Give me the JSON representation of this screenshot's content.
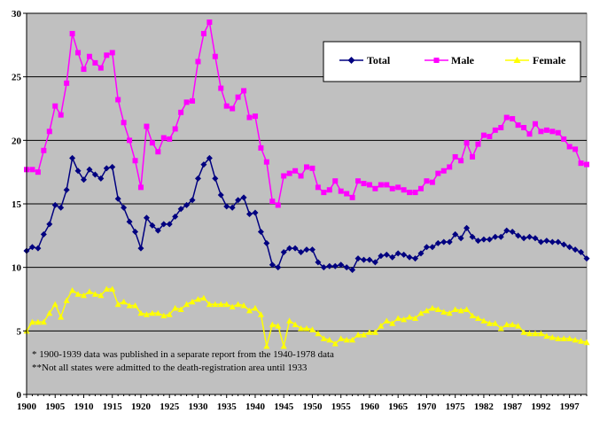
{
  "chart_data": {
    "type": "line",
    "title": "",
    "xlabel": "",
    "ylabel": "",
    "xlim": [
      1900,
      1998
    ],
    "ylim": [
      0,
      30
    ],
    "y_ticks": [
      0,
      5,
      10,
      15,
      20,
      25,
      30
    ],
    "x_tick_labels": [
      "1900",
      "1905",
      "1910",
      "1915",
      "1920",
      "1925",
      "1930",
      "1935",
      "1940",
      "1945",
      "1950",
      "1955",
      "1960",
      "1965",
      "1970",
      "1975",
      "1982",
      "1987",
      "1992",
      "1997"
    ],
    "grid": "horizontal",
    "legend_position": "top-right",
    "plot_background": "#c0c0c0",
    "years": [
      1900,
      1901,
      1902,
      1903,
      1904,
      1905,
      1906,
      1907,
      1908,
      1909,
      1910,
      1911,
      1912,
      1913,
      1914,
      1915,
      1916,
      1917,
      1918,
      1919,
      1920,
      1921,
      1922,
      1923,
      1924,
      1925,
      1926,
      1927,
      1928,
      1929,
      1930,
      1931,
      1932,
      1933,
      1934,
      1935,
      1936,
      1937,
      1938,
      1939,
      1940,
      1941,
      1942,
      1943,
      1944,
      1945,
      1946,
      1947,
      1948,
      1949,
      1950,
      1951,
      1952,
      1953,
      1954,
      1955,
      1956,
      1957,
      1958,
      1959,
      1960,
      1961,
      1962,
      1963,
      1964,
      1965,
      1966,
      1967,
      1968,
      1969,
      1970,
      1971,
      1972,
      1973,
      1974,
      1975,
      1976,
      1977,
      1978,
      1979,
      1980,
      1981,
      1982,
      1983,
      1984,
      1985,
      1986,
      1987,
      1988,
      1989,
      1990,
      1991,
      1992,
      1993,
      1994,
      1995,
      1996,
      1997,
      1998
    ],
    "series": [
      {
        "name": "Total",
        "color": "#000080",
        "marker": "diamond",
        "values": [
          11.3,
          11.6,
          11.5,
          12.6,
          13.4,
          14.9,
          14.7,
          16.1,
          18.6,
          17.6,
          16.9,
          17.7,
          17.3,
          17.0,
          17.8,
          17.9,
          15.4,
          14.7,
          13.6,
          12.8,
          11.5,
          13.9,
          13.3,
          12.9,
          13.4,
          13.4,
          14.0,
          14.6,
          14.9,
          15.3,
          17.0,
          18.1,
          18.6,
          17.0,
          15.7,
          14.8,
          14.7,
          15.3,
          15.5,
          14.2,
          14.3,
          12.8,
          11.9,
          10.2,
          10.0,
          11.2,
          11.5,
          11.5,
          11.2,
          11.4,
          11.4,
          10.4,
          10.0,
          10.1,
          10.1,
          10.2,
          10.0,
          9.8,
          10.7,
          10.6,
          10.6,
          10.4,
          10.9,
          11.0,
          10.8,
          11.1,
          11.0,
          10.8,
          10.7,
          11.1,
          11.6,
          11.6,
          11.9,
          12.0,
          12.0,
          12.6,
          12.3,
          13.1,
          12.4,
          12.1,
          12.2,
          12.2,
          12.4,
          12.4,
          12.9,
          12.8,
          12.5,
          12.3,
          12.4,
          12.3,
          12.0,
          12.1,
          12.0,
          12.0,
          11.8,
          11.6,
          11.4,
          11.2,
          10.7
        ]
      },
      {
        "name": "Male",
        "color": "#ff00ff",
        "marker": "square",
        "values": [
          17.7,
          17.7,
          17.5,
          19.2,
          20.7,
          22.7,
          22.0,
          24.5,
          28.4,
          26.9,
          25.6,
          26.6,
          26.1,
          25.7,
          26.7,
          26.9,
          23.2,
          21.4,
          20.0,
          18.4,
          16.3,
          21.1,
          19.8,
          19.1,
          20.2,
          20.1,
          20.9,
          22.2,
          23.0,
          23.1,
          26.2,
          28.4,
          29.3,
          26.6,
          24.1,
          22.7,
          22.5,
          23.4,
          23.9,
          21.8,
          21.9,
          19.4,
          18.3,
          15.2,
          14.9,
          17.2,
          17.4,
          17.6,
          17.2,
          17.9,
          17.8,
          16.3,
          15.9,
          16.1,
          16.8,
          16.0,
          15.8,
          15.5,
          16.8,
          16.6,
          16.5,
          16.2,
          16.5,
          16.5,
          16.2,
          16.3,
          16.1,
          15.9,
          15.9,
          16.2,
          16.8,
          16.7,
          17.4,
          17.6,
          17.9,
          18.7,
          18.4,
          19.8,
          18.7,
          19.7,
          20.4,
          20.3,
          20.8,
          21.0,
          21.8,
          21.7,
          21.2,
          21.0,
          20.5,
          21.3,
          20.7,
          20.8,
          20.7,
          20.6,
          20.1,
          19.5,
          19.3,
          18.2,
          18.1
        ]
      },
      {
        "name": "Female",
        "color": "#ffff00",
        "marker": "triangle",
        "values": [
          5.0,
          5.7,
          5.7,
          5.7,
          6.4,
          7.1,
          6.1,
          7.4,
          8.2,
          7.9,
          7.8,
          8.1,
          7.9,
          7.8,
          8.3,
          8.3,
          7.1,
          7.3,
          7.0,
          7.0,
          6.4,
          6.3,
          6.4,
          6.4,
          6.2,
          6.3,
          6.8,
          6.7,
          7.1,
          7.3,
          7.5,
          7.6,
          7.1,
          7.1,
          7.1,
          7.1,
          6.9,
          7.1,
          7.0,
          6.6,
          6.8,
          6.3,
          3.8,
          5.5,
          5.4,
          3.8,
          5.8,
          5.5,
          5.2,
          5.2,
          5.1,
          4.8,
          4.4,
          4.3,
          4.0,
          4.4,
          4.3,
          4.3,
          4.7,
          4.7,
          4.9,
          4.9,
          5.4,
          5.8,
          5.6,
          6.0,
          5.9,
          6.1,
          6.0,
          6.4,
          6.6,
          6.8,
          6.7,
          6.5,
          6.4,
          6.7,
          6.6,
          6.7,
          6.2,
          6.0,
          5.8,
          5.6,
          5.6,
          5.2,
          5.5,
          5.5,
          5.4,
          4.9,
          4.8,
          4.8,
          4.8,
          4.6,
          4.5,
          4.4,
          4.4,
          4.4,
          4.3,
          4.2,
          4.1
        ]
      }
    ],
    "annotations": [
      "* 1900-1939 data was published in a separate report from the 1940-1978 data",
      "**Not all states were admitted to the death-registration area until 1933"
    ]
  }
}
